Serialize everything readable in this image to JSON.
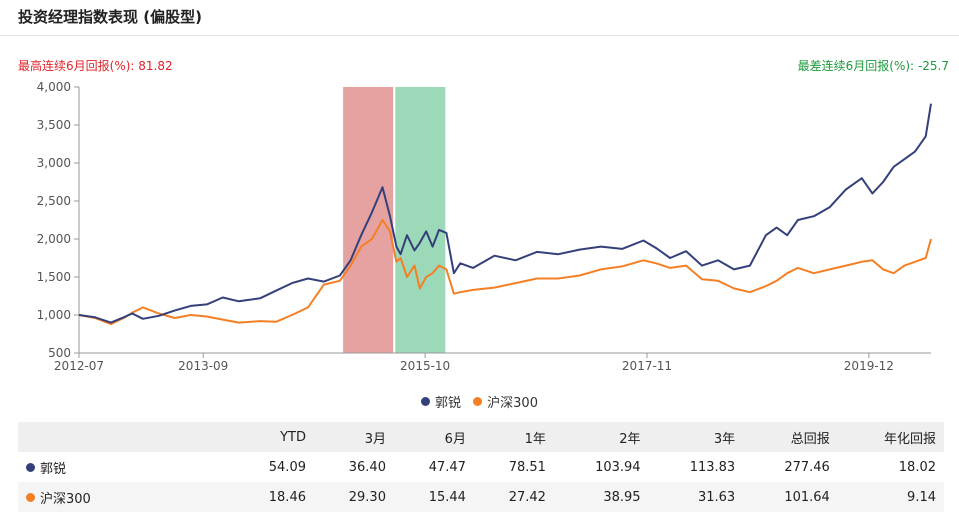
{
  "header": {
    "title": "投资经理指数表现 (偏股型)",
    "best_label": "最高连续6月回报(%):",
    "best_value": "81.82",
    "worst_label": "最差连续6月回报(%):",
    "worst_value": "-25.7"
  },
  "colors": {
    "manager": "#34407a",
    "index": "#f47f24",
    "best_band": "#d9706f",
    "worst_band": "#5ac08b",
    "best_text": "#e0242b",
    "worst_text": "#1e9a3c"
  },
  "chart_data": {
    "type": "line",
    "x_range": [
      "2012-07",
      "2020-07"
    ],
    "y_range": [
      500,
      4000
    ],
    "y_ticks": [
      "500",
      "1,000",
      "1,500",
      "2,000",
      "2,500",
      "3,000",
      "3,500",
      "4,000"
    ],
    "x_ticks": [
      "2012-07",
      "2013-09",
      "2015-10",
      "2017-11",
      "2019-12"
    ],
    "highlight_best": {
      "start": 2014.98,
      "end": 2015.45
    },
    "highlight_worst": {
      "start": 2015.47,
      "end": 2015.94
    },
    "series": [
      {
        "name": "郭锐",
        "x": [
          2012.5,
          2012.65,
          2012.8,
          2012.92,
          2013.0,
          2013.1,
          2013.25,
          2013.4,
          2013.55,
          2013.7,
          2013.85,
          2014.0,
          2014.2,
          2014.35,
          2014.5,
          2014.65,
          2014.8,
          2014.95,
          2015.05,
          2015.15,
          2015.25,
          2015.35,
          2015.42,
          2015.48,
          2015.52,
          2015.58,
          2015.65,
          2015.7,
          2015.76,
          2015.82,
          2015.88,
          2015.95,
          2016.02,
          2016.08,
          2016.2,
          2016.4,
          2016.6,
          2016.8,
          2017.0,
          2017.2,
          2017.4,
          2017.6,
          2017.8,
          2017.92,
          2018.05,
          2018.2,
          2018.35,
          2018.5,
          2018.65,
          2018.8,
          2018.95,
          2019.05,
          2019.15,
          2019.25,
          2019.4,
          2019.55,
          2019.7,
          2019.85,
          2019.95,
          2020.05,
          2020.15,
          2020.25,
          2020.35,
          2020.45,
          2020.5
        ],
        "values": [
          1000,
          970,
          900,
          970,
          1020,
          950,
          990,
          1060,
          1120,
          1140,
          1230,
          1180,
          1220,
          1320,
          1420,
          1480,
          1440,
          1520,
          1720,
          2050,
          2350,
          2680,
          2300,
          1900,
          1800,
          2050,
          1850,
          1950,
          2100,
          1900,
          2120,
          2080,
          1550,
          1680,
          1620,
          1780,
          1720,
          1830,
          1800,
          1860,
          1900,
          1870,
          1980,
          1880,
          1750,
          1840,
          1650,
          1720,
          1600,
          1650,
          2050,
          2150,
          2050,
          2250,
          2300,
          2420,
          2650,
          2800,
          2600,
          2750,
          2950,
          3050,
          3150,
          3350,
          3780
        ]
      },
      {
        "name": "沪深300",
        "x": [
          2012.5,
          2012.65,
          2012.8,
          2012.92,
          2013.0,
          2013.1,
          2013.25,
          2013.4,
          2013.55,
          2013.7,
          2013.85,
          2014.0,
          2014.2,
          2014.35,
          2014.5,
          2014.65,
          2014.8,
          2014.95,
          2015.05,
          2015.15,
          2015.25,
          2015.35,
          2015.42,
          2015.48,
          2015.52,
          2015.58,
          2015.65,
          2015.7,
          2015.76,
          2015.82,
          2015.88,
          2015.95,
          2016.02,
          2016.08,
          2016.2,
          2016.4,
          2016.6,
          2016.8,
          2017.0,
          2017.2,
          2017.4,
          2017.6,
          2017.8,
          2017.92,
          2018.05,
          2018.2,
          2018.35,
          2018.5,
          2018.65,
          2018.8,
          2018.95,
          2019.05,
          2019.15,
          2019.25,
          2019.4,
          2019.55,
          2019.7,
          2019.85,
          2019.95,
          2020.05,
          2020.15,
          2020.25,
          2020.35,
          2020.45,
          2020.5
        ],
        "values": [
          1000,
          960,
          880,
          960,
          1030,
          1100,
          1020,
          960,
          1000,
          980,
          940,
          900,
          920,
          910,
          1000,
          1100,
          1400,
          1450,
          1650,
          1900,
          2000,
          2250,
          2100,
          1700,
          1750,
          1500,
          1650,
          1350,
          1500,
          1550,
          1650,
          1600,
          1280,
          1300,
          1330,
          1360,
          1420,
          1480,
          1480,
          1520,
          1600,
          1640,
          1720,
          1680,
          1620,
          1650,
          1470,
          1450,
          1350,
          1300,
          1380,
          1450,
          1550,
          1620,
          1550,
          1600,
          1650,
          1700,
          1720,
          1600,
          1550,
          1650,
          1700,
          1750,
          2000
        ]
      }
    ]
  },
  "legend": [
    {
      "label": "郭锐",
      "color": "#34407a"
    },
    {
      "label": "沪深300",
      "color": "#f47f24"
    }
  ],
  "table": {
    "headers": [
      "",
      "YTD",
      "3月",
      "6月",
      "1年",
      "2年",
      "3年",
      "总回报",
      "年化回报"
    ],
    "rows": [
      {
        "name": "郭锐",
        "color": "#34407a",
        "values": [
          "54.09",
          "36.40",
          "47.47",
          "78.51",
          "103.94",
          "113.83",
          "277.46",
          "18.02"
        ]
      },
      {
        "name": "沪深300",
        "color": "#f47f24",
        "values": [
          "18.46",
          "29.30",
          "15.44",
          "27.42",
          "38.95",
          "31.63",
          "101.64",
          "9.14"
        ]
      }
    ]
  }
}
